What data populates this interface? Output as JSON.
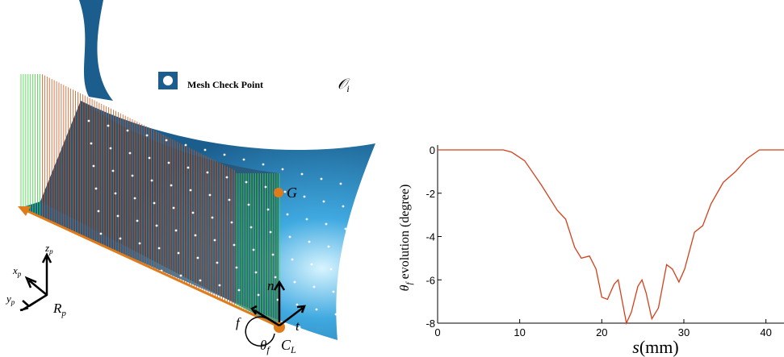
{
  "illustration": {
    "legend": {
      "label": "Mesh Check Point",
      "symbol": "𝒪",
      "subscript": "i"
    },
    "point_g": "G",
    "normal": "n",
    "feed": "f",
    "tangent": "t",
    "angle": {
      "symbol": "θ",
      "subscript": "f"
    },
    "contact": {
      "symbol": "C",
      "subscript": "L"
    },
    "frame": {
      "x": {
        "symbol": "x",
        "subscript": "p"
      },
      "y": {
        "symbol": "y",
        "subscript": "p"
      },
      "z": {
        "symbol": "z",
        "subscript": "p"
      },
      "name": {
        "symbol": "R",
        "subscript": "p"
      }
    }
  },
  "chart_data": {
    "type": "line",
    "color": "#d2411b",
    "x_label": {
      "symbol": "s",
      "text": "(mm)"
    },
    "y_label": {
      "symbol": "θ",
      "subscript": "f",
      "text": " evolution (degree)"
    },
    "x": [
      0,
      4,
      8,
      9,
      10.6,
      12.6,
      14.6,
      15.6,
      16.7,
      17.5,
      18.5,
      19.3,
      20,
      20.7,
      21.5,
      22,
      22.5,
      23,
      23.6,
      24.4,
      24.9,
      25.4,
      26.1,
      26.9,
      27.9,
      28.6,
      29.4,
      30.1,
      31.3,
      32.3,
      33.3,
      34.8,
      36.3,
      37.7,
      39.2,
      40.5,
      42.2
    ],
    "values": [
      0,
      0,
      0,
      -0.1,
      -0.5,
      -1.6,
      -2.8,
      -3.2,
      -4.5,
      -5.0,
      -4.9,
      -5.5,
      -6.8,
      -6.9,
      -6.2,
      -6.0,
      -7.0,
      -8.0,
      -7.5,
      -6.3,
      -6.0,
      -6.6,
      -7.8,
      -7.3,
      -5.3,
      -5.5,
      -6.1,
      -5.5,
      -3.8,
      -3.5,
      -2.5,
      -1.5,
      -1.0,
      -0.4,
      0,
      0,
      0
    ],
    "xlim": [
      0,
      42.2
    ],
    "ylim": [
      -8,
      0
    ],
    "xticks": [
      0,
      10,
      20,
      30,
      40
    ],
    "yticks": [
      0,
      -2,
      -4,
      -6,
      -8
    ]
  }
}
